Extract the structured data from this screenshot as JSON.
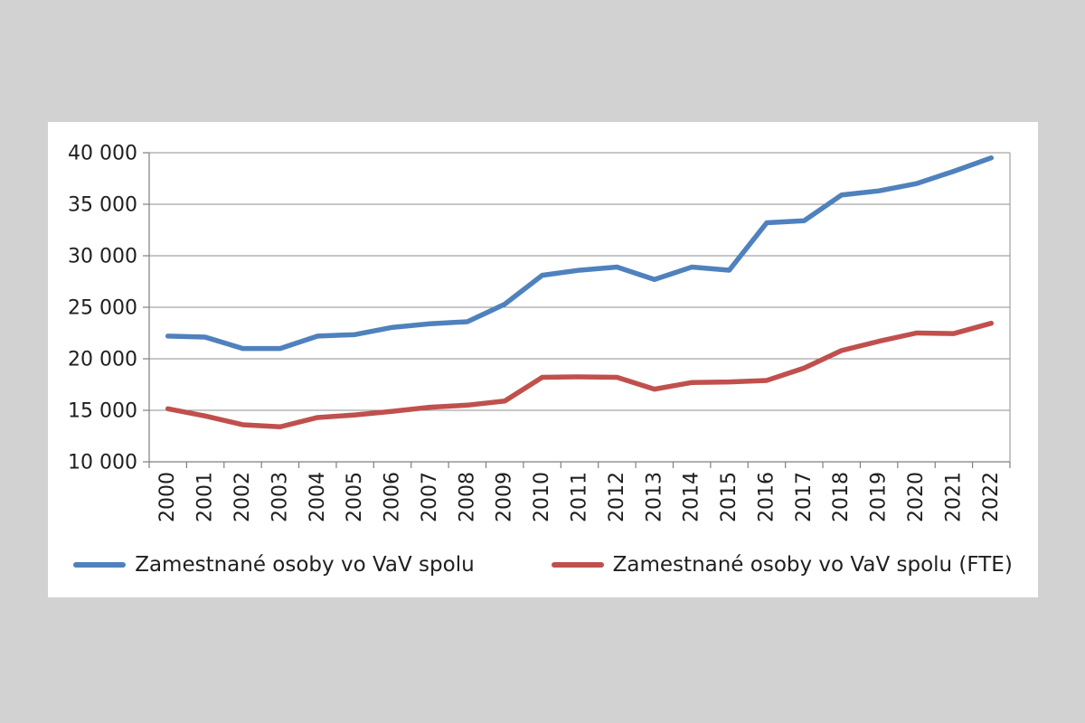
{
  "chart_data": {
    "type": "line",
    "title": "",
    "categories": [
      "2000",
      "2001",
      "2002",
      "2003",
      "2004",
      "2005",
      "2006",
      "2007",
      "2008",
      "2009",
      "2010",
      "2011",
      "2012",
      "2013",
      "2014",
      "2015",
      "2016",
      "2017",
      "2018",
      "2019",
      "2020",
      "2021",
      "2022"
    ],
    "series": [
      {
        "name": "Zamestnané osoby vo VaV spolu",
        "color": "#4F81BD",
        "values": [
          22200,
          22100,
          21000,
          21000,
          22200,
          22350,
          23050,
          23400,
          23600,
          25300,
          28100,
          28600,
          28900,
          27700,
          28900,
          28600,
          33200,
          33400,
          35900,
          36300,
          37000,
          38200,
          39500
        ]
      },
      {
        "name": "Zamestnané osoby vo VaV spolu (FTE)",
        "color": "#C0504D",
        "values": [
          15150,
          14450,
          13600,
          13400,
          14300,
          14550,
          14900,
          15300,
          15500,
          15900,
          18200,
          18250,
          18200,
          17050,
          17700,
          17750,
          17900,
          19100,
          20800,
          21700,
          22500,
          22450,
          23450
        ]
      }
    ],
    "ylim": [
      10000,
      40000
    ],
    "ytick_step": 5000,
    "ytick_labels": [
      "10 000",
      "15 000",
      "20 000",
      "25 000",
      "30 000",
      "35 000",
      "40 000"
    ],
    "grid": "horizontal",
    "legend_position": "bottom"
  },
  "colors": {
    "page_background": "#d2d2d2",
    "panel_background": "#ffffff",
    "gridline": "#8f8f8f",
    "axis": "#7f7f7f",
    "tick_text": "#1f1f1f"
  }
}
